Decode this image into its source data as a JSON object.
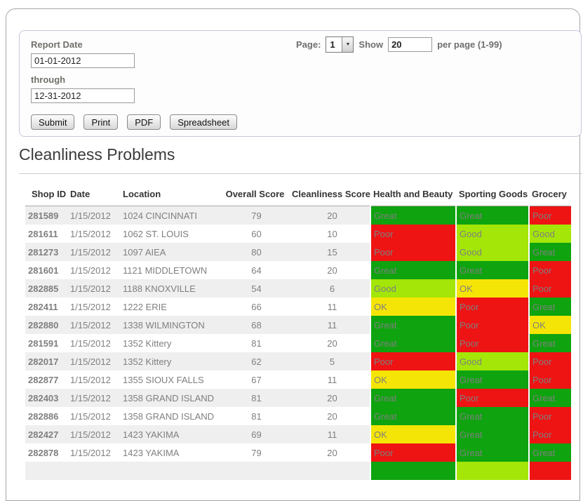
{
  "title": "Cleanliness Problems",
  "form": {
    "report_date_label": "Report Date",
    "from_value": "01-01-2012",
    "through_label": "through",
    "to_value": "12-31-2012",
    "buttons": {
      "submit": "Submit",
      "print": "Print",
      "pdf": "PDF",
      "spreadsheet": "Spreadsheet"
    },
    "pagination": {
      "page_label": "Page:",
      "page_value": "1",
      "dropdown_arrow": "▼",
      "show_label": "Show",
      "per_page_value": "20",
      "suffix_label": "per page (1-99)"
    }
  },
  "colors": {
    "great": "#0FA30F",
    "good": "#A3E607",
    "ok": "#F5E506",
    "poor": "#EE1414",
    "rating_dark_text": "#8B8B8B"
  },
  "table": {
    "columns": [
      "Shop ID",
      "Date",
      "Location",
      "Overall Score",
      "Cleanliness Score",
      "Health and Beauty",
      "Sporting Goods",
      "Grocery"
    ],
    "rows": [
      {
        "shop_id": "281589",
        "date": "1/15/2012",
        "location": "1024 CINCINNATI",
        "overall_score": "79",
        "cleanliness_score": "20",
        "health_and_beauty": {
          "label": "Great",
          "level": "great"
        },
        "sporting_goods": {
          "label": "Great",
          "level": "great"
        },
        "grocery": {
          "label": "Poor",
          "level": "poor"
        }
      },
      {
        "shop_id": "281611",
        "date": "1/15/2012",
        "location": "1062 ST. LOUIS",
        "overall_score": "60",
        "cleanliness_score": "10",
        "health_and_beauty": {
          "label": "Poor",
          "level": "poor"
        },
        "sporting_goods": {
          "label": "Good",
          "level": "good"
        },
        "grocery": {
          "label": "Good",
          "level": "good"
        }
      },
      {
        "shop_id": "281273",
        "date": "1/15/2012",
        "location": "1097 AIEA",
        "overall_score": "80",
        "cleanliness_score": "15",
        "health_and_beauty": {
          "label": "Poor",
          "level": "poor"
        },
        "sporting_goods": {
          "label": "Good",
          "level": "good"
        },
        "grocery": {
          "label": "Great",
          "level": "great"
        }
      },
      {
        "shop_id": "281601",
        "date": "1/15/2012",
        "location": "1121 MIDDLETOWN",
        "overall_score": "64",
        "cleanliness_score": "20",
        "health_and_beauty": {
          "label": "Great",
          "level": "great"
        },
        "sporting_goods": {
          "label": "Great",
          "level": "great"
        },
        "grocery": {
          "label": "Poor",
          "level": "poor"
        }
      },
      {
        "shop_id": "282885",
        "date": "1/15/2012",
        "location": "1188 KNOXVILLE",
        "overall_score": "54",
        "cleanliness_score": "6",
        "health_and_beauty": {
          "label": "Good",
          "level": "good"
        },
        "sporting_goods": {
          "label": "OK",
          "level": "ok"
        },
        "grocery": {
          "label": "Poor",
          "level": "poor"
        }
      },
      {
        "shop_id": "282411",
        "date": "1/15/2012",
        "location": "1222 ERIE",
        "overall_score": "66",
        "cleanliness_score": "11",
        "health_and_beauty": {
          "label": "OK",
          "level": "ok"
        },
        "sporting_goods": {
          "label": "Poor",
          "level": "poor"
        },
        "grocery": {
          "label": "Great",
          "level": "great"
        }
      },
      {
        "shop_id": "282880",
        "date": "1/15/2012",
        "location": "1338 WILMINGTON",
        "overall_score": "68",
        "cleanliness_score": "11",
        "health_and_beauty": {
          "label": "Great",
          "level": "great"
        },
        "sporting_goods": {
          "label": "Poor",
          "level": "poor"
        },
        "grocery": {
          "label": "OK",
          "level": "ok"
        }
      },
      {
        "shop_id": "281591",
        "date": "1/15/2012",
        "location": "1352 Kittery",
        "overall_score": "81",
        "cleanliness_score": "20",
        "health_and_beauty": {
          "label": "Great",
          "level": "great"
        },
        "sporting_goods": {
          "label": "Poor",
          "level": "poor"
        },
        "grocery": {
          "label": "Great",
          "level": "great"
        }
      },
      {
        "shop_id": "282017",
        "date": "1/15/2012",
        "location": "1352 Kittery",
        "overall_score": "62",
        "cleanliness_score": "5",
        "health_and_beauty": {
          "label": "Poor",
          "level": "poor"
        },
        "sporting_goods": {
          "label": "Good",
          "level": "good"
        },
        "grocery": {
          "label": "Poor",
          "level": "poor"
        }
      },
      {
        "shop_id": "282877",
        "date": "1/15/2012",
        "location": "1355 SIOUX FALLS",
        "overall_score": "67",
        "cleanliness_score": "11",
        "health_and_beauty": {
          "label": "OK",
          "level": "ok"
        },
        "sporting_goods": {
          "label": "Great",
          "level": "great"
        },
        "grocery": {
          "label": "Poor",
          "level": "poor"
        }
      },
      {
        "shop_id": "282403",
        "date": "1/15/2012",
        "location": "1358 GRAND ISLAND",
        "overall_score": "81",
        "cleanliness_score": "20",
        "health_and_beauty": {
          "label": "Great",
          "level": "great"
        },
        "sporting_goods": {
          "label": "Poor",
          "level": "poor"
        },
        "grocery": {
          "label": "Great",
          "level": "great"
        }
      },
      {
        "shop_id": "282886",
        "date": "1/15/2012",
        "location": "1358 GRAND ISLAND",
        "overall_score": "81",
        "cleanliness_score": "20",
        "health_and_beauty": {
          "label": "Great",
          "level": "great"
        },
        "sporting_goods": {
          "label": "Great",
          "level": "great"
        },
        "grocery": {
          "label": "Poor",
          "level": "poor"
        }
      },
      {
        "shop_id": "282427",
        "date": "1/15/2012",
        "location": "1423 YAKIMA",
        "overall_score": "69",
        "cleanliness_score": "11",
        "health_and_beauty": {
          "label": "OK",
          "level": "ok"
        },
        "sporting_goods": {
          "label": "Great",
          "level": "great"
        },
        "grocery": {
          "label": "Poor",
          "level": "poor"
        }
      },
      {
        "shop_id": "282878",
        "date": "1/15/2012",
        "location": "1423 YAKIMA",
        "overall_score": "79",
        "cleanliness_score": "20",
        "health_and_beauty": {
          "label": "Poor",
          "level": "poor"
        },
        "sporting_goods": {
          "label": "Great",
          "level": "great"
        },
        "grocery": {
          "label": "Great",
          "level": "great"
        }
      },
      {
        "shop_id": "",
        "date": "",
        "location": "",
        "overall_score": "",
        "cleanliness_score": "",
        "health_and_beauty": {
          "label": "",
          "level": "great"
        },
        "sporting_goods": {
          "label": "",
          "level": "good"
        },
        "grocery": {
          "label": "",
          "level": "poor"
        }
      }
    ]
  }
}
